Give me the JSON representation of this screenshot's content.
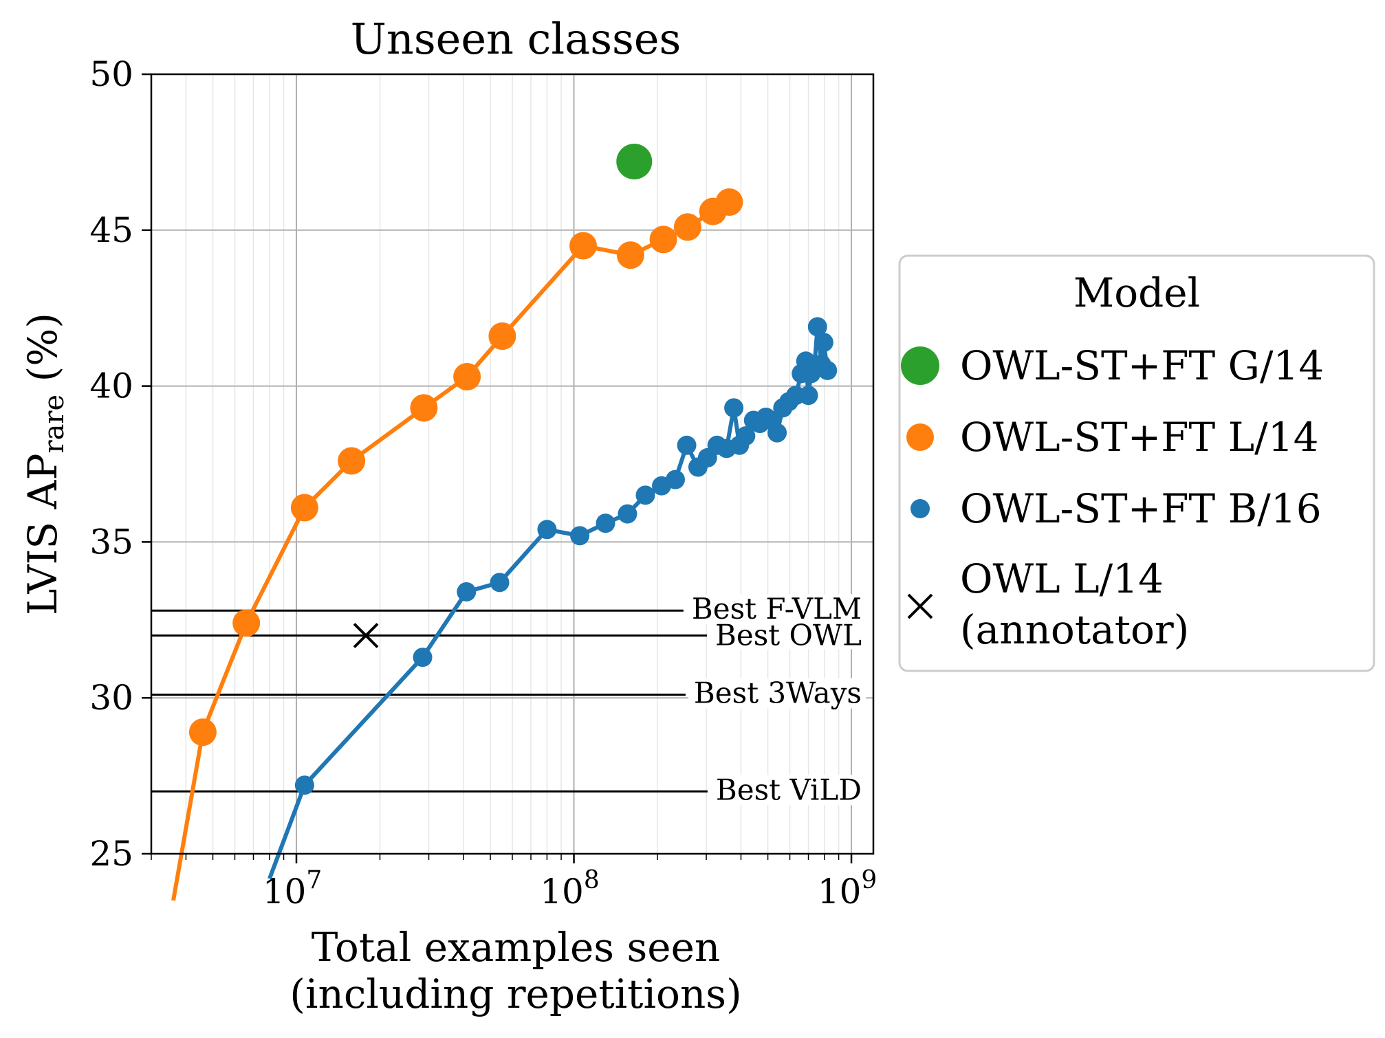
{
  "chart_data": {
    "type": "line",
    "title": "Unseen classes",
    "xlabel": [
      "Total examples seen",
      "(including repetitions)"
    ],
    "ylabel": {
      "main": "LVIS AP",
      "subscript": "rare",
      "suffix": " (%)"
    },
    "xscale": "log",
    "xlim": [
      3000000,
      1200000000
    ],
    "ylim": [
      25,
      50
    ],
    "xticks": [
      {
        "value": 10000000,
        "base": "10",
        "exp": "7"
      },
      {
        "value": 100000000,
        "base": "10",
        "exp": "8"
      },
      {
        "value": 1000000000,
        "base": "10",
        "exp": "9"
      }
    ],
    "yticks": [
      25,
      30,
      35,
      40,
      45,
      50
    ],
    "grid": true,
    "legend": {
      "title": "Model",
      "placement": "outside-right"
    },
    "reference_lines": [
      {
        "label": "Best F-VLM",
        "y": 32.8
      },
      {
        "label": "Best OWL",
        "y": 32.0
      },
      {
        "label": "Best 3Ways",
        "y": 30.1
      },
      {
        "label": "Best ViLD",
        "y": 27.0
      }
    ],
    "series": [
      {
        "name": "OWL-ST+FT G/14",
        "color": "#2ca02c",
        "marker": "circle-large",
        "points": [
          [
            165000000,
            47.2
          ]
        ]
      },
      {
        "name": "OWL-ST+FT L/14",
        "color": "#ff7f0e",
        "marker": "circle",
        "points": [
          [
            3600000,
            23.5
          ],
          [
            4600000,
            28.9
          ],
          [
            6600000,
            32.4
          ],
          [
            10700000,
            36.1
          ],
          [
            15800000,
            37.6
          ],
          [
            28800000,
            39.3
          ],
          [
            41200000,
            40.3
          ],
          [
            55200000,
            41.6
          ],
          [
            108000000,
            44.5
          ],
          [
            160000000,
            44.2
          ],
          [
            210000000,
            44.7
          ],
          [
            257000000,
            45.1
          ],
          [
            317000000,
            45.6
          ],
          [
            363000000,
            45.9
          ]
        ]
      },
      {
        "name": "OWL-ST+FT B/16",
        "color": "#1f77b4",
        "marker": "circle-small",
        "points": [
          [
            8000000,
            24.2
          ],
          [
            10700000,
            27.2
          ],
          [
            28500000,
            31.3
          ],
          [
            41000000,
            33.4
          ],
          [
            54000000,
            33.7
          ],
          [
            80000000,
            35.4
          ],
          [
            105000000,
            35.2
          ],
          [
            130000000,
            35.6
          ],
          [
            156000000,
            35.9
          ],
          [
            181000000,
            36.5
          ],
          [
            207000000,
            36.8
          ],
          [
            232000000,
            37.0
          ],
          [
            255000000,
            38.1
          ],
          [
            280000000,
            37.4
          ],
          [
            303000000,
            37.7
          ],
          [
            328000000,
            38.1
          ],
          [
            355000000,
            38.0
          ],
          [
            377000000,
            39.3
          ],
          [
            395000000,
            38.1
          ],
          [
            416000000,
            38.4
          ],
          [
            444000000,
            38.9
          ],
          [
            468000000,
            38.8
          ],
          [
            492000000,
            39.0
          ],
          [
            516000000,
            38.9
          ],
          [
            540000000,
            38.5
          ],
          [
            566000000,
            39.3
          ],
          [
            595000000,
            39.5
          ],
          [
            630000000,
            39.7
          ],
          [
            660000000,
            40.4
          ],
          [
            685000000,
            40.8
          ],
          [
            700000000,
            39.7
          ],
          [
            715000000,
            40.4
          ],
          [
            735000000,
            40.6
          ],
          [
            755000000,
            41.9
          ],
          [
            780000000,
            40.7
          ],
          [
            795000000,
            41.4
          ],
          [
            820000000,
            40.5
          ]
        ]
      },
      {
        "name": "OWL L/14",
        "name_line2": "(annotator)",
        "color": "#000000",
        "marker": "x",
        "points": [
          [
            17800000,
            32.0
          ]
        ]
      }
    ]
  }
}
